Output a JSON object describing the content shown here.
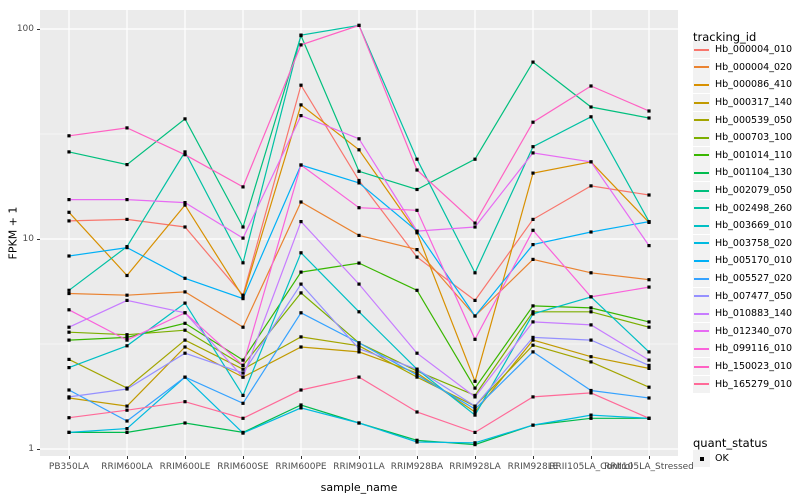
{
  "figure": {
    "background": "#FFFFFF",
    "panel_background": "#EBEBEB",
    "grid_color": "#FFFFFF",
    "tick_label_color": "#4d4d4d",
    "point_color": "#000000"
  },
  "chart_data": {
    "type": "line",
    "title": "",
    "xlabel": "sample_name",
    "ylabel": "FPKM + 1",
    "y_scale": "log10",
    "y_ticks": [
      1,
      10,
      100
    ],
    "y_minor_ticks": [
      3.162,
      31.62
    ],
    "ylim": [
      0.93,
      121
    ],
    "grid": true,
    "legend_position": "right",
    "point_marker": "black-square",
    "categories": [
      "PB350LA",
      "RRIM600LA",
      "RRIM600LE",
      "RRIM600SE",
      "RRIM600PE",
      "RRIM901LA",
      "RRIM928BA",
      "RRIM928LA",
      "RRIM928LE",
      "RRII105LA_Control",
      "RRII105LA_Stressed"
    ],
    "series": [
      {
        "name": "Hb_000004_010",
        "color": "#F8766D",
        "values": [
          12.2,
          12.4,
          11.4,
          5.4,
          54,
          19,
          8.2,
          5.1,
          12.4,
          17.9,
          16.2
        ]
      },
      {
        "name": "Hb_000004_020",
        "color": "#EA8331",
        "values": [
          5.5,
          5.4,
          5.6,
          3.8,
          15,
          10.4,
          8.9,
          4.3,
          8.0,
          6.9,
          6.4
        ]
      },
      {
        "name": "Hb_000086_410",
        "color": "#D89000",
        "values": [
          13.4,
          6.7,
          14.5,
          5.3,
          43.5,
          26.6,
          10.7,
          2.1,
          20.6,
          23.3,
          12.0
        ]
      },
      {
        "name": "Hb_000317_140",
        "color": "#C19A00",
        "values": [
          1.75,
          1.6,
          3.06,
          2.2,
          3.06,
          2.9,
          2.3,
          1.5,
          3.3,
          2.75,
          2.42
        ]
      },
      {
        "name": "Hb_000539_050",
        "color": "#A3A500",
        "values": [
          2.67,
          1.95,
          3.3,
          2.4,
          3.42,
          3.1,
          2.2,
          1.6,
          3.12,
          2.6,
          1.97
        ]
      },
      {
        "name": "Hb_000703_100",
        "color": "#7CAE00",
        "values": [
          3.6,
          3.5,
          3.68,
          2.5,
          5.54,
          3.2,
          2.35,
          1.8,
          4.5,
          4.5,
          3.8
        ]
      },
      {
        "name": "Hb_001014_110",
        "color": "#39B600",
        "values": [
          3.3,
          3.4,
          3.97,
          2.65,
          6.96,
          7.68,
          5.7,
          1.95,
          4.8,
          4.7,
          4.03
        ]
      },
      {
        "name": "Hb_001104_130",
        "color": "#00BB4E",
        "values": [
          1.2,
          1.2,
          1.33,
          1.2,
          1.62,
          1.33,
          1.1,
          1.05,
          1.3,
          1.4,
          1.4
        ]
      },
      {
        "name": "Hb_002079_050",
        "color": "#00BF7D",
        "values": [
          26,
          22.6,
          37.3,
          11.4,
          93,
          21,
          17.2,
          24,
          69.6,
          42.5,
          37.7
        ]
      },
      {
        "name": "Hb_002498_260",
        "color": "#00C1A3",
        "values": [
          5.7,
          9.2,
          26,
          7.7,
          93.5,
          104,
          24,
          6.9,
          27.5,
          38.2,
          12.1
        ]
      },
      {
        "name": "Hb_003669_010",
        "color": "#00BFC4",
        "values": [
          2.44,
          3.1,
          4.95,
          1.8,
          8.6,
          4.5,
          2.4,
          1.45,
          4.4,
          5.3,
          2.9
        ]
      },
      {
        "name": "Hb_003758_020",
        "color": "#00BAE0",
        "values": [
          1.2,
          1.25,
          2.2,
          1.19,
          1.57,
          1.33,
          1.08,
          1.07,
          1.3,
          1.45,
          1.4
        ]
      },
      {
        "name": "Hb_005170_010",
        "color": "#00B0F6",
        "values": [
          8.3,
          9.1,
          6.5,
          5.2,
          22.5,
          18.5,
          10.9,
          4.3,
          9.4,
          10.8,
          12.1
        ]
      },
      {
        "name": "Hb_005527_020",
        "color": "#35A2FF",
        "values": [
          1.91,
          1.36,
          2.2,
          1.65,
          4.45,
          3.2,
          2.25,
          1.55,
          2.9,
          1.9,
          1.75
        ]
      },
      {
        "name": "Hb_007477_050",
        "color": "#9590FF",
        "values": [
          1.77,
          1.93,
          2.86,
          2.3,
          6.1,
          3.0,
          2.4,
          1.6,
          3.4,
          3.3,
          2.5
        ]
      },
      {
        "name": "Hb_010883_140",
        "color": "#C77CFF",
        "values": [
          3.8,
          5.1,
          4.45,
          2.2,
          12.1,
          6.1,
          2.86,
          1.77,
          4.03,
          3.9,
          2.65
        ]
      },
      {
        "name": "Hb_012340_070",
        "color": "#E76BF3",
        "values": [
          15.4,
          15.4,
          14.9,
          10.1,
          38.7,
          30,
          10.9,
          11.4,
          25.7,
          23.3,
          9.3
        ]
      },
      {
        "name": "Hb_099116_010",
        "color": "#FA62DB",
        "values": [
          4.6,
          3.3,
          4.45,
          2.5,
          22.5,
          14.1,
          13.7,
          3.33,
          11,
          5.3,
          5.9
        ]
      },
      {
        "name": "Hb_150023_010",
        "color": "#FF61C3",
        "values": [
          31,
          33.8,
          25.2,
          17.7,
          84,
          104,
          21.3,
          11.9,
          36,
          53.5,
          40.7
        ]
      },
      {
        "name": "Hb_165279_010",
        "color": "#FF6A98",
        "values": [
          1.41,
          1.53,
          1.68,
          1.4,
          1.91,
          2.2,
          1.5,
          1.2,
          1.77,
          1.85,
          1.4
        ]
      }
    ],
    "legend": {
      "tracking_title": "tracking_id",
      "quant_title": "quant_status",
      "quant_items": [
        {
          "label": "OK",
          "marker": "black-square",
          "color": "#000000"
        }
      ]
    }
  }
}
